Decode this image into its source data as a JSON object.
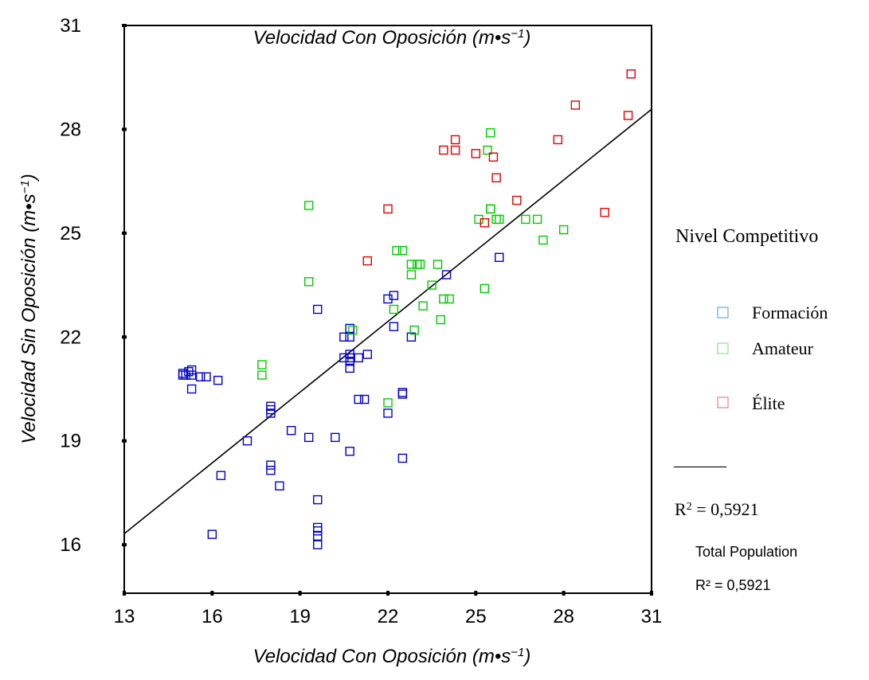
{
  "chart_data": {
    "type": "scatter",
    "title_prefix": "Velocidad Con Oposición (m•s",
    "title_exp": "−1",
    "title_suffix": ")",
    "xlabel_prefix": "Velocidad Con Oposición (m•s",
    "xlabel_exp": "−1",
    "xlabel_suffix": ")",
    "ylabel_prefix": "Velocidad Sin Oposición (m•s",
    "ylabel_exp": "−1",
    "ylabel_suffix": ")",
    "xlim": [
      13,
      31
    ],
    "ylim": [
      14.6,
      31
    ],
    "xticks": [
      "13",
      "16",
      "19",
      "22",
      "25",
      "28",
      "31"
    ],
    "yticks": [
      "16",
      "19",
      "22",
      "25",
      "28",
      "31"
    ],
    "legend_title": "Nivel Competitivo",
    "legend_line": "______",
    "r2_base": "R",
    "r2_exp": "2",
    "r2_value": " = 0,5921",
    "total_population_label": "Total Population",
    "total_population_r2": "R² = 0,5921",
    "fit_line": {
      "x": [
        13,
        31
      ],
      "y": [
        16.32,
        28.58
      ]
    },
    "series": [
      {
        "name": "Formación",
        "color": "#0000cc",
        "legend_color": "#6aa8e0",
        "points": [
          [
            15.0,
            20.9
          ],
          [
            15.0,
            20.95
          ],
          [
            15.1,
            20.9
          ],
          [
            15.2,
            21.0
          ],
          [
            15.3,
            21.05
          ],
          [
            15.3,
            20.9
          ],
          [
            15.6,
            20.85
          ],
          [
            15.8,
            20.85
          ],
          [
            16.2,
            20.75
          ],
          [
            15.3,
            20.5
          ],
          [
            16.3,
            18.0
          ],
          [
            16.0,
            16.3
          ],
          [
            17.2,
            19.0
          ],
          [
            18.0,
            20.0
          ],
          [
            18.0,
            19.9
          ],
          [
            18.0,
            19.8
          ],
          [
            18.0,
            18.3
          ],
          [
            18.0,
            18.15
          ],
          [
            18.3,
            17.7
          ],
          [
            18.7,
            19.3
          ],
          [
            19.3,
            19.1
          ],
          [
            19.6,
            22.8
          ],
          [
            19.6,
            17.3
          ],
          [
            19.6,
            16.5
          ],
          [
            19.6,
            16.4
          ],
          [
            19.6,
            16.25
          ],
          [
            19.6,
            16.0
          ],
          [
            20.2,
            19.1
          ],
          [
            20.7,
            18.7
          ],
          [
            20.5,
            21.4
          ],
          [
            20.5,
            22.0
          ],
          [
            20.7,
            22.25
          ],
          [
            20.7,
            22.0
          ],
          [
            20.7,
            21.5
          ],
          [
            20.7,
            21.3
          ],
          [
            20.7,
            21.1
          ],
          [
            20.7,
            21.4
          ],
          [
            21.0,
            21.4
          ],
          [
            21.0,
            20.2
          ],
          [
            21.2,
            20.2
          ],
          [
            21.3,
            21.5
          ],
          [
            22.0,
            23.1
          ],
          [
            22.0,
            19.8
          ],
          [
            22.2,
            23.2
          ],
          [
            22.2,
            22.3
          ],
          [
            22.5,
            20.4
          ],
          [
            22.5,
            20.35
          ],
          [
            22.5,
            18.5
          ],
          [
            22.8,
            22.0
          ],
          [
            24.0,
            23.8
          ],
          [
            25.8,
            24.3
          ]
        ]
      },
      {
        "name": "Amateur",
        "color": "#00cc00",
        "legend_color": "#90e090",
        "points": [
          [
            17.7,
            21.2
          ],
          [
            17.7,
            20.9
          ],
          [
            19.3,
            25.8
          ],
          [
            19.3,
            23.6
          ],
          [
            20.8,
            22.2
          ],
          [
            22.0,
            20.1
          ],
          [
            22.2,
            22.8
          ],
          [
            22.3,
            24.5
          ],
          [
            22.5,
            24.5
          ],
          [
            22.8,
            24.1
          ],
          [
            22.8,
            23.8
          ],
          [
            23.0,
            24.1
          ],
          [
            23.1,
            24.1
          ],
          [
            22.9,
            22.2
          ],
          [
            23.2,
            22.9
          ],
          [
            23.5,
            23.5
          ],
          [
            23.7,
            24.1
          ],
          [
            23.8,
            22.5
          ],
          [
            23.9,
            23.1
          ],
          [
            24.1,
            23.1
          ],
          [
            25.1,
            25.4
          ],
          [
            25.3,
            23.4
          ],
          [
            25.4,
            27.4
          ],
          [
            25.5,
            27.9
          ],
          [
            25.5,
            25.7
          ],
          [
            25.5,
            25.7
          ],
          [
            25.7,
            25.4
          ],
          [
            25.8,
            25.4
          ],
          [
            26.7,
            25.4
          ],
          [
            27.1,
            25.4
          ],
          [
            27.3,
            24.8
          ],
          [
            28.0,
            25.1
          ]
        ]
      },
      {
        "name": "Élite",
        "color": "#e00000",
        "legend_color": "#f08080",
        "points": [
          [
            21.3,
            24.2
          ],
          [
            22.0,
            25.7
          ],
          [
            23.9,
            27.4
          ],
          [
            24.3,
            27.7
          ],
          [
            24.3,
            27.4
          ],
          [
            25.0,
            27.3
          ],
          [
            25.3,
            25.3
          ],
          [
            25.6,
            27.2
          ],
          [
            25.7,
            26.6
          ],
          [
            26.4,
            25.95
          ],
          [
            27.8,
            27.7
          ],
          [
            28.4,
            28.7
          ],
          [
            29.4,
            25.6
          ],
          [
            30.2,
            28.4
          ],
          [
            30.3,
            29.6
          ]
        ]
      }
    ]
  }
}
